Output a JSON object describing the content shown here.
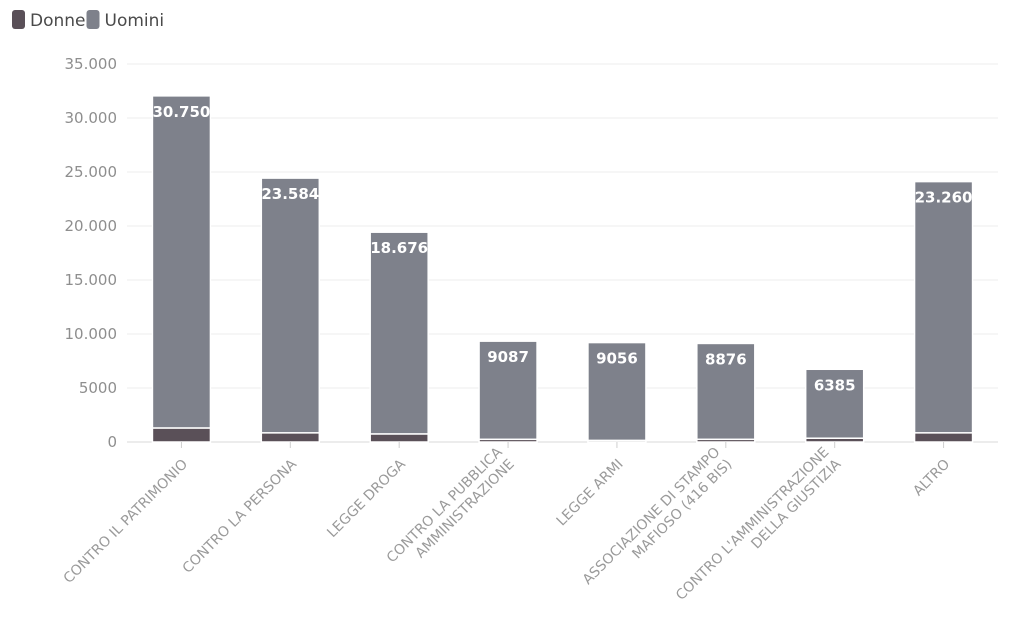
{
  "chart_data": {
    "type": "bar",
    "stacked": true,
    "legend": {
      "position": "top-left"
    },
    "grid": true,
    "ylim": [
      0,
      35000
    ],
    "yticks": [
      0,
      5000,
      10000,
      15000,
      20000,
      25000,
      30000,
      35000
    ],
    "ytick_labels": [
      "0",
      "5000",
      "10.000",
      "15.000",
      "20.000",
      "25.000",
      "30.000",
      "35.000"
    ],
    "categories": [
      [
        "CONTRO IL PATRIMONIO"
      ],
      [
        "CONTRO LA PERSONA"
      ],
      [
        "LEGGE DROGA"
      ],
      [
        "CONTRO LA PUBBLICA",
        "AMMINISTRAZIONE"
      ],
      [
        "LEGGE ARMI"
      ],
      [
        "ASSOCIAZIONE DI STAMPO",
        "MAFIOSO (416 BIS)"
      ],
      [
        "CONTRO L'AMMINISTRAZIONE",
        "DELLA GIUSTIZIA"
      ],
      [
        "ALTRO"
      ]
    ],
    "series": [
      {
        "name": "Donne",
        "color": "#5a5058",
        "values": [
          1300,
          850,
          750,
          250,
          150,
          250,
          350,
          850
        ]
      },
      {
        "name": "Uomini",
        "color": "#7e818b",
        "values": [
          30750,
          23584,
          18676,
          9087,
          9056,
          8876,
          6385,
          23260
        ]
      }
    ],
    "data_labels": [
      "30.750",
      "23.584",
      "18.676",
      "9087",
      "9056",
      "8876",
      "6385",
      "23.260"
    ]
  }
}
